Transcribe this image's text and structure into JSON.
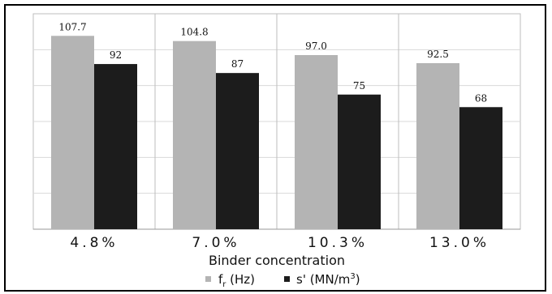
{
  "chart_data": {
    "type": "bar",
    "categories": [
      "4.8%",
      "7.0%",
      "10.3%",
      "13.0%"
    ],
    "series": [
      {
        "name": "f_r (Hz)",
        "color": "#b4b4b4",
        "values": [
          107.7,
          104.8,
          97.0,
          92.5
        ],
        "labels": [
          "107.7",
          "104.8",
          "97.0",
          "92.5"
        ]
      },
      {
        "name": "s' (MN/m3)",
        "color": "#1c1c1c",
        "values": [
          92,
          87,
          75,
          68
        ],
        "labels": [
          "92",
          "87",
          "75",
          "68"
        ]
      }
    ],
    "xlabel": "Binder concentration",
    "ylabel": "",
    "grid": true,
    "legend": {
      "placement": "bottom-center",
      "items": [
        {
          "main": "f",
          "sub": "r",
          "rest": " (Hz)"
        },
        {
          "main": "s' (MN/m",
          "sup": "3",
          "rest": ")"
        }
      ]
    }
  }
}
